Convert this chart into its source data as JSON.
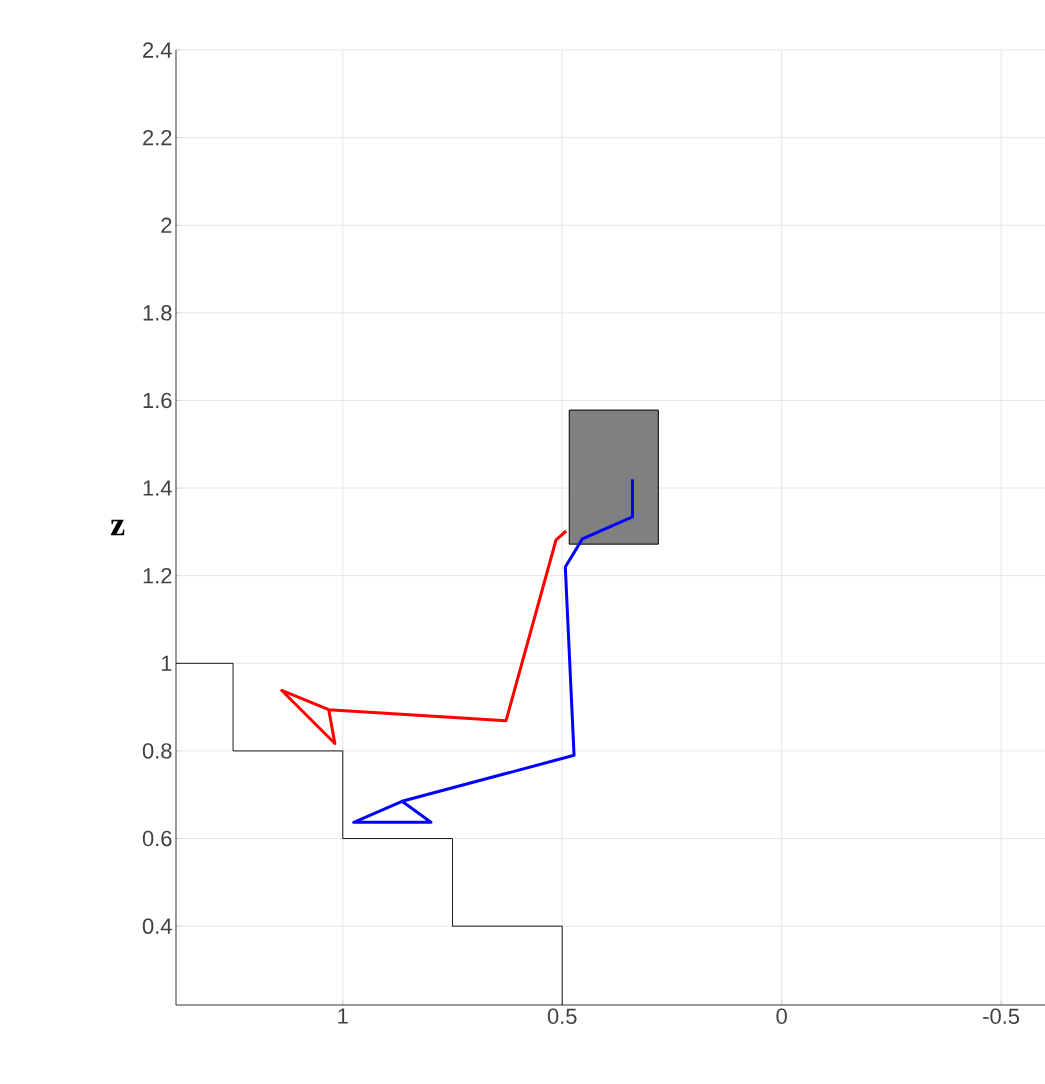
{
  "chart_data": {
    "type": "line",
    "ylabel": "z",
    "xlim": [
      1.38,
      -0.6
    ],
    "xticks": [
      1,
      0.5,
      0,
      -0.5
    ],
    "ylim": [
      0.22,
      2.4
    ],
    "yticks": [
      0.4,
      0.6,
      0.8,
      1,
      1.2,
      1.4,
      1.6,
      1.8,
      2,
      2.2,
      2.4
    ],
    "grid": true,
    "series": [
      {
        "color": "#000000",
        "x": [
          1.38,
          1.25,
          1.25,
          1.0,
          1.0,
          0.75,
          0.75,
          0.5,
          0.5
        ],
        "values": [
          1.0,
          1.0,
          0.8,
          0.8,
          0.6,
          0.6,
          0.4,
          0.4,
          0.22
        ]
      },
      {
        "type": "area",
        "color": "#808080",
        "x": [
          0.484,
          0.281,
          0.281,
          0.484,
          0.484
        ],
        "values": [
          1.578,
          1.578,
          1.272,
          1.272,
          1.578
        ]
      },
      {
        "color": "#ff0000",
        "x": [
          0.491,
          0.514,
          0.628,
          1.032,
          1.139,
          1.018,
          1.032
        ],
        "values": [
          1.302,
          1.282,
          0.869,
          0.894,
          0.938,
          0.817,
          0.894
        ]
      },
      {
        "color": "#0000ff",
        "x": [
          0.34,
          0.34,
          0.454,
          0.493,
          0.473,
          0.865,
          0.975,
          0.799,
          0.865
        ],
        "values": [
          1.42,
          1.334,
          1.284,
          1.22,
          0.79,
          0.685,
          0.637,
          0.637,
          0.685
        ]
      }
    ]
  }
}
